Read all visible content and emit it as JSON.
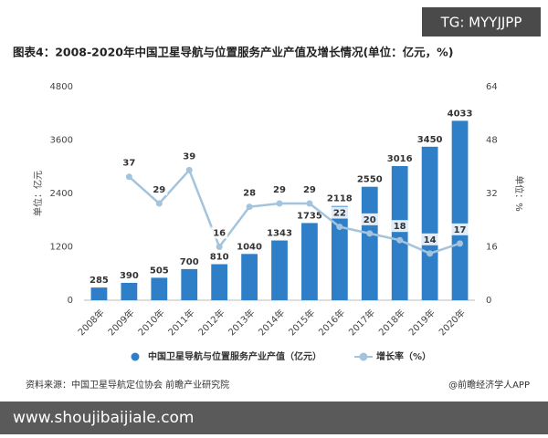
{
  "watermark": "TG: MYYJJPP",
  "source": "资料来源：中国卫星导航定位协会 前瞻产业研究院",
  "credit": "@前瞻经济学人APP",
  "website": "www.shoujibaijiale.com",
  "chart_data": {
    "type": "bar-line",
    "title": "图表4：2008-2020年中国卫星导航与位置服务产业产值及增长情况(单位：亿元，%)",
    "y_label": "单位：亿元",
    "y2_label": "单位：%",
    "categories": [
      "2008年",
      "2009年",
      "2010年",
      "2011年",
      "2012年",
      "2013年",
      "2014年",
      "2015年",
      "2016年",
      "2017年",
      "2018年",
      "2019年",
      "2020年"
    ],
    "series": [
      {
        "name": "中国卫星导航与位置服务产业产值（亿元）",
        "type": "bar",
        "color": "#2f7fc8",
        "values": [
          285,
          390,
          505,
          700,
          810,
          1040,
          1343,
          1735,
          2118,
          2550,
          3016,
          3450,
          4033
        ]
      },
      {
        "name": "增长率（%）",
        "type": "line",
        "axis": "y2",
        "color": "#a3c4dc",
        "values": [
          null,
          37,
          29,
          39,
          16,
          28,
          29,
          29,
          22,
          20,
          18,
          14,
          17
        ]
      }
    ],
    "ylim": [
      0,
      4800
    ],
    "yticks": [
      0,
      1200,
      2400,
      3600,
      4800
    ],
    "y2lim": [
      0,
      64
    ],
    "y2ticks": [
      0,
      16,
      32,
      48,
      64
    ],
    "legend": "bottom"
  }
}
